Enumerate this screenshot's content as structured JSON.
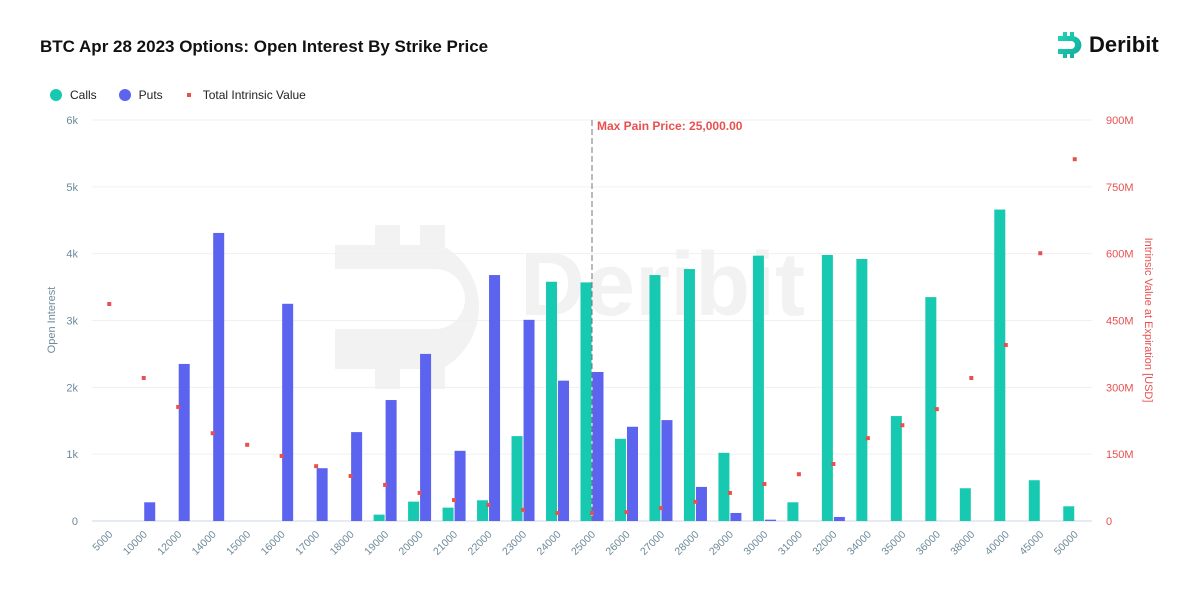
{
  "title": "BTC Apr 28 2023 Options: Open Interest By Strike Price",
  "logo": "Deribit",
  "chart_data": {
    "type": "bar",
    "title": "BTC Apr 28 2023 Options: Open Interest By Strike Price",
    "ylabel": "Open Interest",
    "y2label": "Intrinsic Value at Expiration [USD]",
    "ylim": [
      0,
      6000
    ],
    "y2lim": [
      0,
      900000000
    ],
    "yticks": [
      "0",
      "1k",
      "2k",
      "3k",
      "4k",
      "5k",
      "6k"
    ],
    "y2ticks": [
      "0",
      "150M",
      "300M",
      "450M",
      "600M",
      "750M",
      "900M"
    ],
    "legend_position": "top-left",
    "grid": true,
    "categories": [
      "5000",
      "10000",
      "12000",
      "14000",
      "15000",
      "16000",
      "17000",
      "18000",
      "19000",
      "20000",
      "21000",
      "22000",
      "23000",
      "24000",
      "25000",
      "26000",
      "27000",
      "28000",
      "29000",
      "30000",
      "31000",
      "32000",
      "34000",
      "35000",
      "36000",
      "38000",
      "40000",
      "45000",
      "50000"
    ],
    "series": [
      {
        "name": "Calls",
        "type": "bar",
        "axis": "left",
        "color": "#17c9b0",
        "values": [
          0,
          0,
          0,
          0,
          0,
          0,
          0,
          0,
          95,
          290,
          200,
          310,
          1270,
          3580,
          3570,
          1230,
          3680,
          3770,
          1020,
          3970,
          280,
          3980,
          3920,
          1570,
          3350,
          490,
          4660,
          610,
          220
        ]
      },
      {
        "name": "Puts",
        "type": "bar",
        "axis": "left",
        "color": "#5b63ef",
        "values": [
          0,
          280,
          2350,
          4310,
          0,
          3250,
          790,
          1330,
          1810,
          2500,
          1050,
          3680,
          3010,
          2100,
          2230,
          1410,
          1510,
          510,
          120,
          20,
          0,
          60,
          0,
          0,
          0,
          0,
          0,
          0,
          0
        ]
      },
      {
        "name": "Total Intrinsic Value",
        "type": "scatter",
        "axis": "right",
        "color": "#e8504f",
        "values": [
          487000000,
          321000000,
          256000000,
          197000000,
          171000000,
          146000000,
          123000000,
          101000000,
          81000000,
          63000000,
          47000000,
          36000000,
          25000000,
          18000000,
          18000000,
          20000000,
          29000000,
          43000000,
          63000000,
          83000000,
          105000000,
          128000000,
          186000000,
          215000000,
          251000000,
          321000000,
          395000000,
          601000000,
          812000000
        ]
      }
    ],
    "annotation": {
      "label": "Max Pain Price: 25,000.00",
      "category": "25000",
      "color": "#e8504f"
    }
  }
}
